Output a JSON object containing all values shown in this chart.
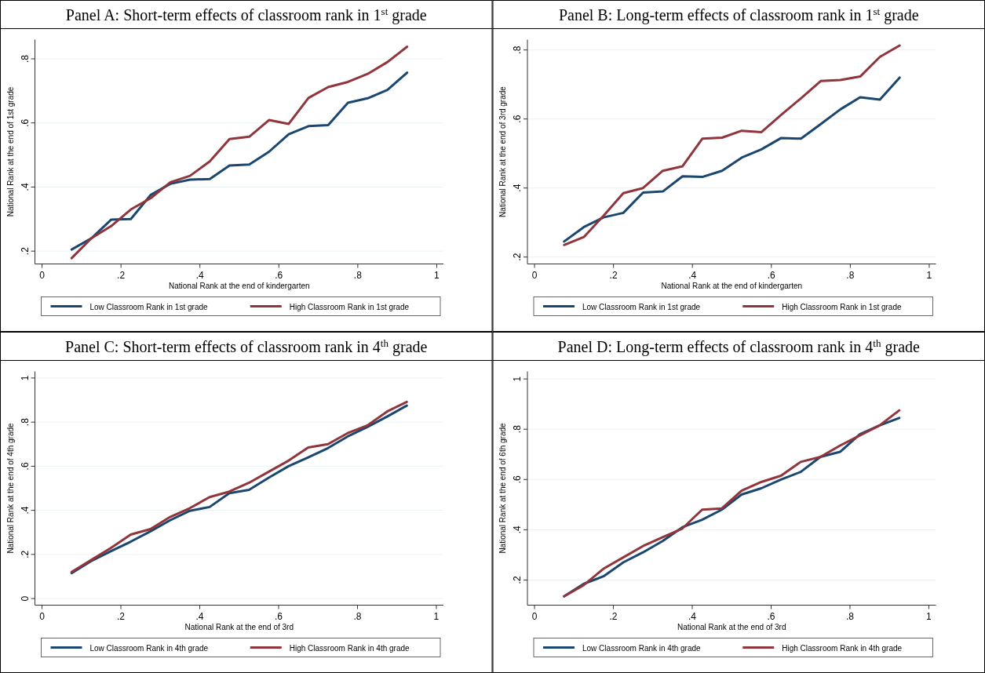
{
  "chart_data": [
    {
      "type": "line",
      "title": "Panel A: Short-term effects of classroom rank in 1$^{st}$ grade",
      "xlabel": "National Rank at the end of kindergarten",
      "ylabel": "National Rank at the end of 1st grade",
      "x": [
        0.075,
        0.125,
        0.175,
        0.225,
        0.275,
        0.325,
        0.375,
        0.425,
        0.475,
        0.525,
        0.575,
        0.625,
        0.675,
        0.725,
        0.775,
        0.825,
        0.875,
        0.925
      ],
      "xlim": [
        -0.018,
        1.017
      ],
      "ylim": [
        0.16,
        0.86
      ],
      "xticks": [
        {
          "value": 0,
          "label": "0"
        },
        {
          "value": 0.2,
          "label": ".2"
        },
        {
          "value": 0.4,
          "label": ".4"
        },
        {
          "value": 0.6,
          "label": ".6"
        },
        {
          "value": 0.8,
          "label": ".8"
        },
        {
          "value": 1,
          "label": "1"
        }
      ],
      "yticks": [
        {
          "value": 0.2,
          "label": ".2"
        },
        {
          "value": 0.4,
          "label": ".4"
        },
        {
          "value": 0.6,
          "label": ".6"
        },
        {
          "value": 0.8,
          "label": ".8"
        }
      ],
      "grid": "y",
      "legend": "bottom",
      "series": [
        {
          "name": "Low Classroom Rank in 1st grade",
          "color": "#1a476f",
          "values": [
            0.205,
            0.24,
            0.298,
            0.3,
            0.375,
            0.41,
            0.423,
            0.425,
            0.467,
            0.47,
            0.51,
            0.565,
            0.59,
            0.593,
            0.663,
            0.677,
            0.703,
            0.757
          ]
        },
        {
          "name": "High Classroom Rank in 1st grade",
          "color": "#90353b",
          "values": [
            0.178,
            0.24,
            0.278,
            0.33,
            0.365,
            0.415,
            0.435,
            0.48,
            0.55,
            0.557,
            0.609,
            0.597,
            0.678,
            0.712,
            0.728,
            0.753,
            0.79,
            0.838
          ]
        }
      ]
    },
    {
      "type": "line",
      "title": "Panel B: Long-term effects of classroom rank in 1$^{st}$ grade",
      "xlabel": "National Rank at the end of kindergarten",
      "ylabel": "National Rank at the end of 3rd grade",
      "x": [
        0.075,
        0.125,
        0.175,
        0.225,
        0.275,
        0.325,
        0.375,
        0.425,
        0.475,
        0.525,
        0.575,
        0.625,
        0.675,
        0.725,
        0.775,
        0.825,
        0.875,
        0.925
      ],
      "xlim": [
        -0.018,
        1.017
      ],
      "ylim": [
        0.18,
        0.83
      ],
      "xticks": [
        {
          "value": 0,
          "label": "0"
        },
        {
          "value": 0.2,
          "label": ".2"
        },
        {
          "value": 0.4,
          "label": ".4"
        },
        {
          "value": 0.6,
          "label": ".6"
        },
        {
          "value": 0.8,
          "label": ".8"
        },
        {
          "value": 1,
          "label": "1"
        }
      ],
      "yticks": [
        {
          "value": 0.2,
          "label": ".2"
        },
        {
          "value": 0.4,
          "label": ".4"
        },
        {
          "value": 0.6,
          "label": ".6"
        },
        {
          "value": 0.8,
          "label": ".8"
        }
      ],
      "grid": "y",
      "legend": "bottom",
      "series": [
        {
          "name": "Low Classroom Rank in 1st grade",
          "color": "#1a476f",
          "values": [
            0.245,
            0.287,
            0.315,
            0.328,
            0.387,
            0.39,
            0.434,
            0.432,
            0.45,
            0.488,
            0.512,
            0.545,
            0.543,
            0.585,
            0.628,
            0.663,
            0.656,
            0.72
          ]
        },
        {
          "name": "High Classroom Rank in 1st grade",
          "color": "#90353b",
          "values": [
            0.235,
            0.258,
            0.32,
            0.385,
            0.4,
            0.45,
            0.463,
            0.543,
            0.546,
            0.566,
            0.562,
            0.612,
            0.66,
            0.71,
            0.713,
            0.723,
            0.78,
            0.813
          ]
        }
      ]
    },
    {
      "type": "line",
      "title": "Panel C: Short-term effects of classroom rank in 4$^{th}$ grade",
      "xlabel": "National Rank at the end of 3rd",
      "ylabel": "National Rank at the end of 4th grade",
      "x": [
        0.075,
        0.125,
        0.175,
        0.225,
        0.275,
        0.325,
        0.375,
        0.425,
        0.475,
        0.525,
        0.575,
        0.625,
        0.675,
        0.725,
        0.775,
        0.825,
        0.875,
        0.925
      ],
      "xlim": [
        -0.018,
        1.018
      ],
      "ylim": [
        -0.03,
        1.03
      ],
      "xticks": [
        {
          "value": 0,
          "label": "0"
        },
        {
          "value": 0.2,
          "label": ".2"
        },
        {
          "value": 0.4,
          "label": ".4"
        },
        {
          "value": 0.6,
          "label": ".6"
        },
        {
          "value": 0.8,
          "label": ".8"
        },
        {
          "value": 1,
          "label": "1"
        }
      ],
      "yticks": [
        {
          "value": 0,
          "label": "0"
        },
        {
          "value": 0.2,
          "label": ".2"
        },
        {
          "value": 0.4,
          "label": ".4"
        },
        {
          "value": 0.6,
          "label": ".6"
        },
        {
          "value": 0.8,
          "label": ".8"
        },
        {
          "value": 1,
          "label": "1"
        }
      ],
      "grid": "y",
      "legend": "bottom",
      "series": [
        {
          "name": "Low Classroom Rank in 4th grade",
          "color": "#1a476f",
          "values": [
            0.115,
            0.17,
            0.215,
            0.258,
            0.305,
            0.355,
            0.398,
            0.415,
            0.478,
            0.493,
            0.548,
            0.6,
            0.64,
            0.682,
            0.735,
            0.778,
            0.825,
            0.875
          ]
        },
        {
          "name": "High Classroom Rank in 4th grade",
          "color": "#90353b",
          "values": [
            0.12,
            0.175,
            0.23,
            0.29,
            0.315,
            0.37,
            0.41,
            0.46,
            0.485,
            0.525,
            0.575,
            0.625,
            0.685,
            0.7,
            0.75,
            0.785,
            0.848,
            0.892
          ]
        }
      ]
    },
    {
      "type": "line",
      "title": "Panel D: Long-term effects of classroom rank in 4$^{th}$ grade",
      "xlabel": "National Rank at the end of 3rd",
      "ylabel": "National Rank at the end of 6th grade",
      "x": [
        0.075,
        0.125,
        0.175,
        0.225,
        0.275,
        0.325,
        0.375,
        0.425,
        0.475,
        0.525,
        0.575,
        0.625,
        0.675,
        0.725,
        0.775,
        0.825,
        0.875,
        0.925
      ],
      "xlim": [
        -0.018,
        1.018
      ],
      "ylim": [
        0.1,
        1.03
      ],
      "xticks": [
        {
          "value": 0,
          "label": "0"
        },
        {
          "value": 0.2,
          "label": ".2"
        },
        {
          "value": 0.4,
          "label": ".4"
        },
        {
          "value": 0.6,
          "label": ".6"
        },
        {
          "value": 0.8,
          "label": ".8"
        },
        {
          "value": 1,
          "label": "1"
        }
      ],
      "yticks": [
        {
          "value": 0.2,
          "label": ".2"
        },
        {
          "value": 0.4,
          "label": ".4"
        },
        {
          "value": 0.6,
          "label": ".6"
        },
        {
          "value": 0.8,
          "label": ".8"
        },
        {
          "value": 1,
          "label": "1"
        }
      ],
      "grid": "y",
      "legend": "bottom",
      "series": [
        {
          "name": "Low Classroom Rank in 4th grade",
          "color": "#1a476f",
          "values": [
            0.135,
            0.185,
            0.215,
            0.27,
            0.31,
            0.355,
            0.41,
            0.44,
            0.48,
            0.54,
            0.565,
            0.6,
            0.63,
            0.69,
            0.71,
            0.78,
            0.815,
            0.845
          ]
        },
        {
          "name": "High Classroom Rank in 4th grade",
          "color": "#90353b",
          "values": [
            0.135,
            0.18,
            0.245,
            0.29,
            0.335,
            0.37,
            0.405,
            0.48,
            0.485,
            0.555,
            0.59,
            0.615,
            0.67,
            0.69,
            0.735,
            0.775,
            0.815,
            0.875
          ]
        }
      ]
    }
  ]
}
